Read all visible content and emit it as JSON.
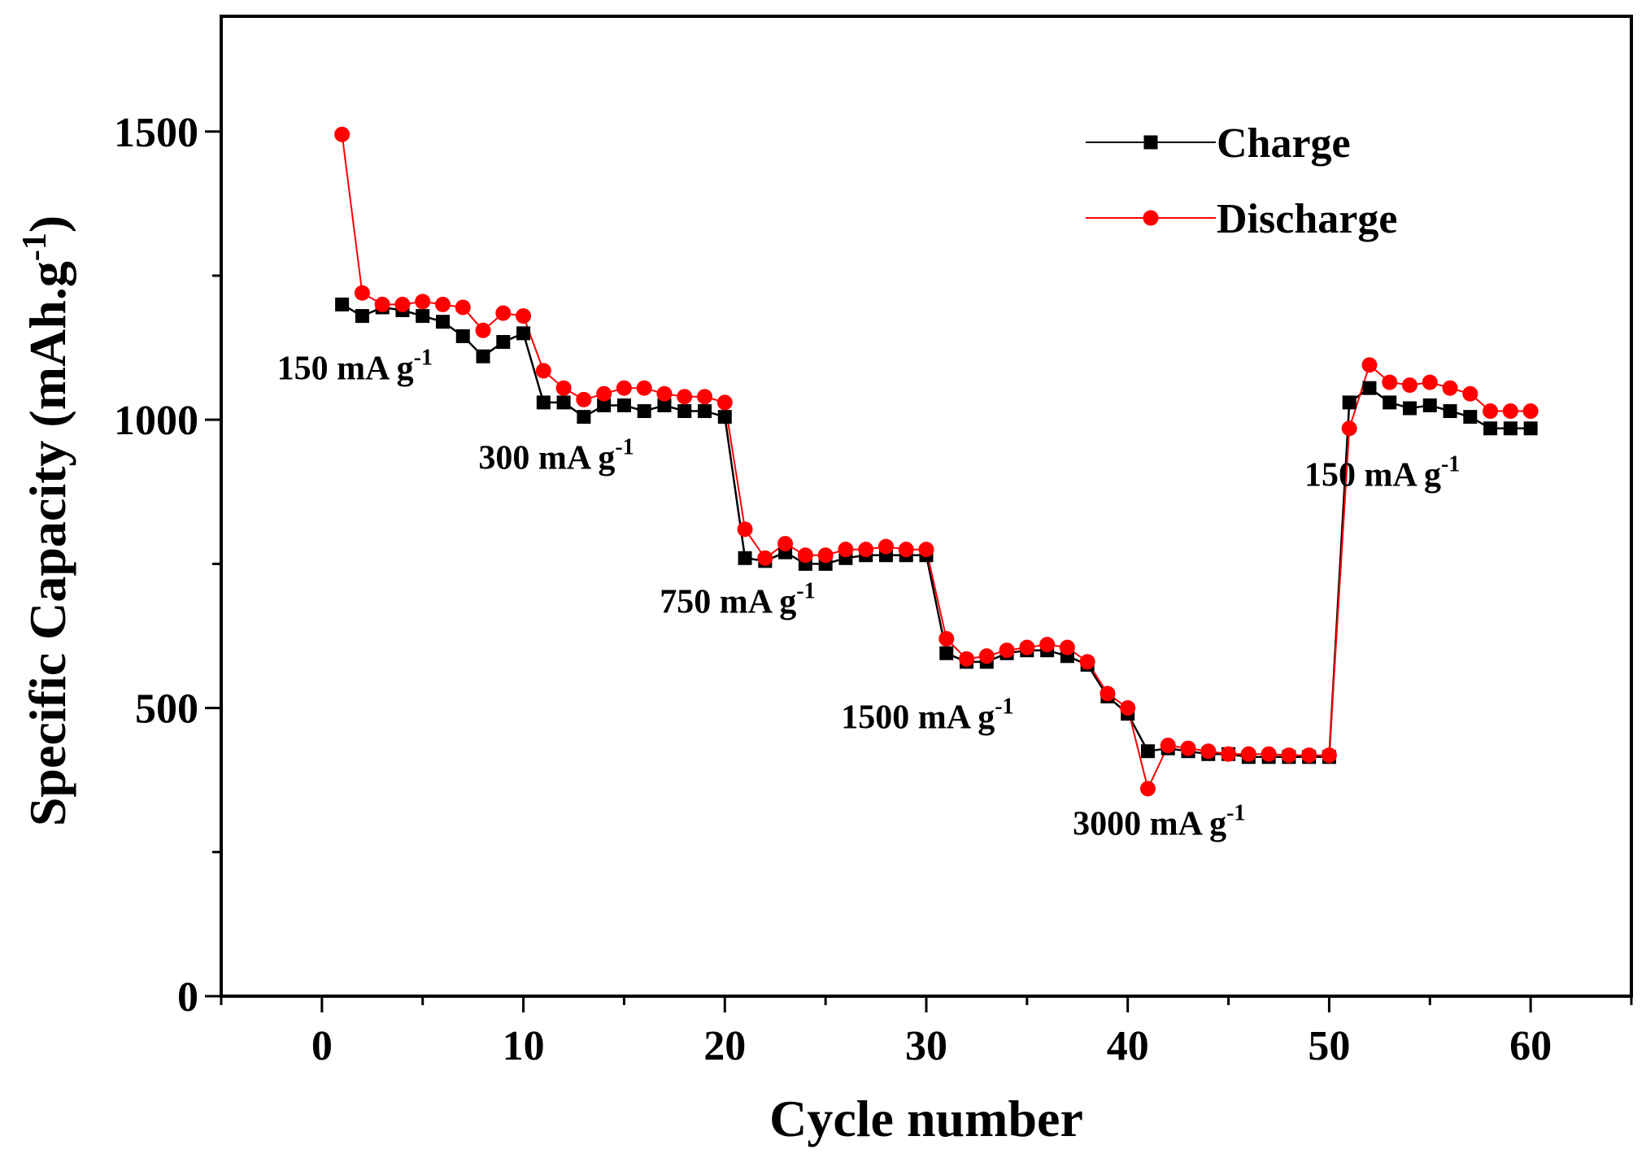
{
  "chart_data": {
    "type": "line",
    "title": "",
    "xlabel": "Cycle number",
    "ylabel": "Specific Capacity (mAh.g",
    "ylabel_sup": "-1",
    "ylabel_close": ")",
    "xlim": [
      -5,
      65
    ],
    "ylim": [
      0,
      1700
    ],
    "xticks": [
      0,
      10,
      20,
      30,
      40,
      50,
      60
    ],
    "yticks": [
      0,
      500,
      1000,
      1500
    ],
    "xtick_labels": [
      "0",
      "10",
      "20",
      "30",
      "40",
      "50",
      "60"
    ],
    "ytick_labels": [
      "0",
      "500",
      "1000",
      "1500"
    ],
    "legend_position": "top-right",
    "series": [
      {
        "name": "Charge",
        "color": "#000000",
        "marker": "square",
        "x": [
          1,
          2,
          3,
          4,
          5,
          6,
          7,
          8,
          9,
          10,
          11,
          12,
          13,
          14,
          15,
          16,
          17,
          18,
          19,
          20,
          21,
          22,
          23,
          24,
          25,
          26,
          27,
          28,
          29,
          30,
          31,
          32,
          33,
          34,
          35,
          36,
          37,
          38,
          39,
          40,
          41,
          42,
          43,
          44,
          45,
          46,
          47,
          48,
          49,
          50,
          51,
          52,
          53,
          54,
          55,
          56,
          57,
          58,
          59,
          60
        ],
        "values": [
          1200,
          1180,
          1195,
          1190,
          1180,
          1170,
          1145,
          1110,
          1135,
          1150,
          1030,
          1030,
          1005,
          1025,
          1025,
          1015,
          1025,
          1015,
          1015,
          1005,
          760,
          755,
          770,
          750,
          750,
          760,
          765,
          765,
          765,
          765,
          595,
          580,
          580,
          595,
          600,
          600,
          590,
          575,
          520,
          490,
          425,
          430,
          425,
          420,
          420,
          415,
          415,
          415,
          415,
          415,
          1030,
          1055,
          1030,
          1020,
          1025,
          1015,
          1005,
          985,
          985,
          985
        ]
      },
      {
        "name": "Discharge",
        "color": "#ff0000",
        "marker": "circle",
        "x": [
          1,
          2,
          3,
          4,
          5,
          6,
          7,
          8,
          9,
          10,
          11,
          12,
          13,
          14,
          15,
          16,
          17,
          18,
          19,
          20,
          21,
          22,
          23,
          24,
          25,
          26,
          27,
          28,
          29,
          30,
          31,
          32,
          33,
          34,
          35,
          36,
          37,
          38,
          39,
          40,
          41,
          42,
          43,
          44,
          45,
          46,
          47,
          48,
          49,
          50,
          51,
          52,
          53,
          54,
          55,
          56,
          57,
          58,
          59,
          60
        ],
        "values": [
          1495,
          1220,
          1200,
          1200,
          1205,
          1200,
          1195,
          1155,
          1185,
          1180,
          1085,
          1055,
          1035,
          1045,
          1055,
          1055,
          1045,
          1040,
          1040,
          1030,
          810,
          760,
          785,
          765,
          765,
          775,
          775,
          780,
          775,
          775,
          620,
          585,
          590,
          600,
          605,
          610,
          605,
          580,
          525,
          500,
          360,
          435,
          430,
          425,
          420,
          420,
          420,
          418,
          418,
          418,
          985,
          1095,
          1065,
          1060,
          1065,
          1055,
          1045,
          1015,
          1015,
          1015
        ]
      }
    ],
    "annotations": [
      {
        "text": "150 mA g",
        "sup": "-1",
        "x": 1,
        "y": 1070
      },
      {
        "text": "300 mA g",
        "sup": "-1",
        "x": 11,
        "y": 915
      },
      {
        "text": "750 mA g",
        "sup": "-1",
        "x": 20,
        "y": 665
      },
      {
        "text": "1500 mA g",
        "sup": "-1",
        "x": 29,
        "y": 465
      },
      {
        "text": "3000 mA g",
        "sup": "-1",
        "x": 40.5,
        "y": 280
      },
      {
        "text": "150 mA g",
        "sup": "-1",
        "x": 52,
        "y": 885
      }
    ]
  }
}
